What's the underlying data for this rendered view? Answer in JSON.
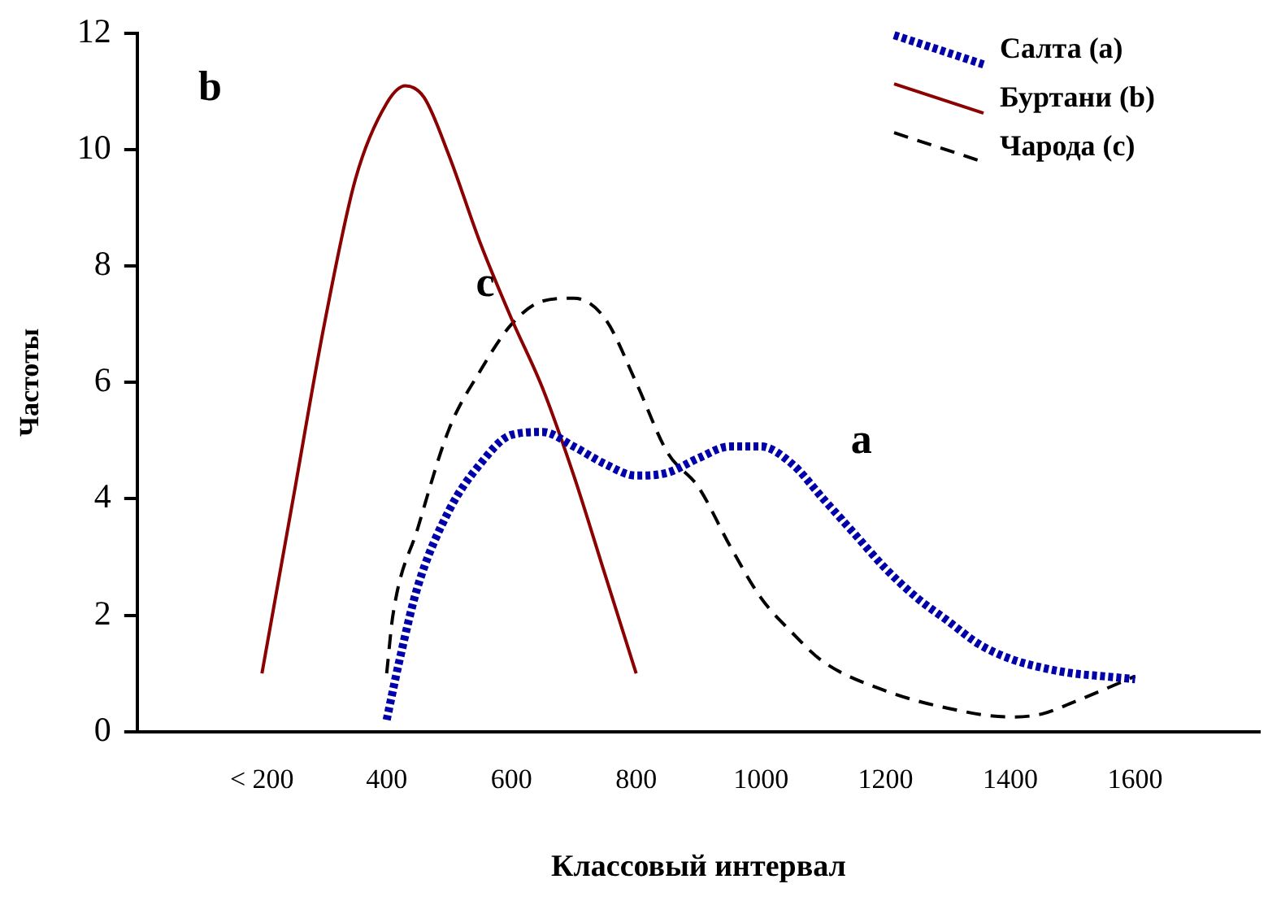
{
  "chart_data": {
    "type": "line",
    "xlabel": "Классовый интервал",
    "ylabel": "Частоты",
    "xlim": [
      0,
      1800
    ],
    "xticks": [
      {
        "value": 200,
        "label": "< 200"
      },
      400,
      600,
      800,
      1000,
      1200,
      1400,
      1600
    ],
    "ylim": [
      0,
      12
    ],
    "yticks": [
      0,
      2,
      4,
      6,
      8,
      10,
      12
    ],
    "grid": false,
    "legend": "top right",
    "series": [
      {
        "name": "Салта (a)",
        "color": "#0000aa",
        "line_style": "dotted",
        "x": [
          400,
          420,
          450,
          500,
          550,
          600,
          650,
          700,
          750,
          800,
          850,
          900,
          950,
          1000,
          1050,
          1100,
          1150,
          1200,
          1250,
          1300,
          1350,
          1400,
          1450,
          1500,
          1550,
          1600
        ],
        "values": [
          0.2,
          1.2,
          2.5,
          3.8,
          4.6,
          5.1,
          5.15,
          4.9,
          4.6,
          4.4,
          4.45,
          4.7,
          4.9,
          4.9,
          4.6,
          4.0,
          3.4,
          2.8,
          2.3,
          1.9,
          1.5,
          1.25,
          1.1,
          1.0,
          0.95,
          0.9
        ]
      },
      {
        "name": "Буртани (b)",
        "color": "#8b0000",
        "line_style": "solid",
        "x": [
          200,
          250,
          300,
          350,
          400,
          430,
          460,
          500,
          550,
          600,
          650,
          700,
          750,
          800
        ],
        "values": [
          1,
          4,
          7,
          9.5,
          10.8,
          11.1,
          10.9,
          9.9,
          8.4,
          7.1,
          5.9,
          4.4,
          2.7,
          1
        ]
      },
      {
        "name": "Чарода (c)",
        "color": "#000000",
        "line_style": "dashed",
        "x": [
          400,
          410,
          450,
          500,
          550,
          600,
          650,
          700,
          750,
          800,
          850,
          900,
          950,
          1000,
          1050,
          1100,
          1200,
          1300,
          1400,
          1450,
          1500,
          1600
        ],
        "values": [
          1.0,
          2.0,
          3.5,
          5.2,
          6.2,
          7.0,
          7.4,
          7.45,
          7.1,
          6.0,
          4.8,
          4.2,
          3.2,
          2.3,
          1.7,
          1.2,
          0.7,
          0.4,
          0.25,
          0.3,
          0.5,
          0.95
        ]
      }
    ],
    "annotations": [
      "b",
      "c",
      "a"
    ]
  }
}
